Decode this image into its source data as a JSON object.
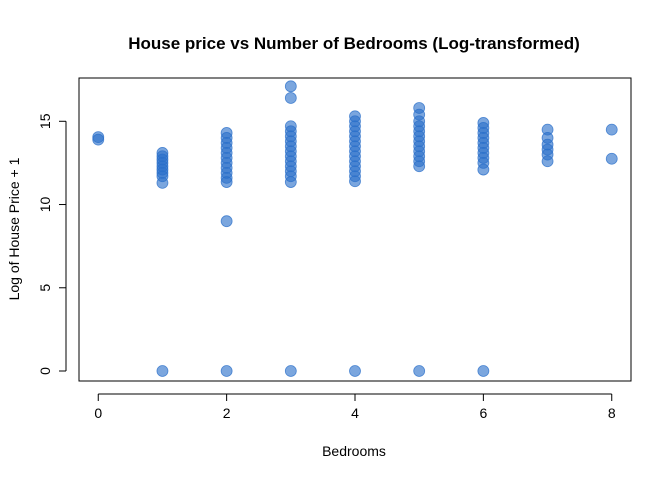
{
  "chart_data": {
    "type": "scatter",
    "title": "House price vs Number of Bedrooms (Log-transformed)",
    "xlabel": "Bedrooms",
    "ylabel": "Log of House Price + 1",
    "xlim": [
      -0.3,
      8.3
    ],
    "ylim": [
      -0.6,
      17.6
    ],
    "x_ticks": [
      0,
      2,
      4,
      6,
      8
    ],
    "y_ticks": [
      0,
      5,
      10,
      15
    ],
    "grid": false,
    "legend": "none",
    "point_color": "#2a6fc9",
    "points": [
      {
        "x": 0,
        "y": 14.05
      },
      {
        "x": 0,
        "y": 13.9
      },
      {
        "x": 1,
        "y": 13.1
      },
      {
        "x": 1,
        "y": 12.9
      },
      {
        "x": 1,
        "y": 12.7
      },
      {
        "x": 1,
        "y": 12.5
      },
      {
        "x": 1,
        "y": 12.3
      },
      {
        "x": 1,
        "y": 12.1
      },
      {
        "x": 1,
        "y": 11.9
      },
      {
        "x": 1,
        "y": 11.7
      },
      {
        "x": 1,
        "y": 11.3
      },
      {
        "x": 1,
        "y": 0
      },
      {
        "x": 2,
        "y": 14.3
      },
      {
        "x": 2,
        "y": 14.0
      },
      {
        "x": 2,
        "y": 13.7
      },
      {
        "x": 2,
        "y": 13.4
      },
      {
        "x": 2,
        "y": 13.1
      },
      {
        "x": 2,
        "y": 12.8
      },
      {
        "x": 2,
        "y": 12.5
      },
      {
        "x": 2,
        "y": 12.2
      },
      {
        "x": 2,
        "y": 11.9
      },
      {
        "x": 2,
        "y": 11.6
      },
      {
        "x": 2,
        "y": 11.35
      },
      {
        "x": 2,
        "y": 9.0
      },
      {
        "x": 2,
        "y": 0
      },
      {
        "x": 3,
        "y": 17.1
      },
      {
        "x": 3,
        "y": 16.4
      },
      {
        "x": 3,
        "y": 14.7
      },
      {
        "x": 3,
        "y": 14.4
      },
      {
        "x": 3,
        "y": 14.1
      },
      {
        "x": 3,
        "y": 13.8
      },
      {
        "x": 3,
        "y": 13.5
      },
      {
        "x": 3,
        "y": 13.2
      },
      {
        "x": 3,
        "y": 12.9
      },
      {
        "x": 3,
        "y": 12.6
      },
      {
        "x": 3,
        "y": 12.3
      },
      {
        "x": 3,
        "y": 12.0
      },
      {
        "x": 3,
        "y": 11.7
      },
      {
        "x": 3,
        "y": 11.35
      },
      {
        "x": 3,
        "y": 0
      },
      {
        "x": 4,
        "y": 15.3
      },
      {
        "x": 4,
        "y": 15.0
      },
      {
        "x": 4,
        "y": 14.7
      },
      {
        "x": 4,
        "y": 14.4
      },
      {
        "x": 4,
        "y": 14.1
      },
      {
        "x": 4,
        "y": 13.8
      },
      {
        "x": 4,
        "y": 13.5
      },
      {
        "x": 4,
        "y": 13.2
      },
      {
        "x": 4,
        "y": 12.9
      },
      {
        "x": 4,
        "y": 12.6
      },
      {
        "x": 4,
        "y": 12.3
      },
      {
        "x": 4,
        "y": 12.0
      },
      {
        "x": 4,
        "y": 11.7
      },
      {
        "x": 4,
        "y": 11.4
      },
      {
        "x": 4,
        "y": 0
      },
      {
        "x": 5,
        "y": 15.8
      },
      {
        "x": 5,
        "y": 15.4
      },
      {
        "x": 5,
        "y": 15.0
      },
      {
        "x": 5,
        "y": 14.7
      },
      {
        "x": 5,
        "y": 14.4
      },
      {
        "x": 5,
        "y": 14.1
      },
      {
        "x": 5,
        "y": 13.8
      },
      {
        "x": 5,
        "y": 13.5
      },
      {
        "x": 5,
        "y": 13.2
      },
      {
        "x": 5,
        "y": 12.9
      },
      {
        "x": 5,
        "y": 12.6
      },
      {
        "x": 5,
        "y": 12.3
      },
      {
        "x": 5,
        "y": 0
      },
      {
        "x": 6,
        "y": 14.9
      },
      {
        "x": 6,
        "y": 14.6
      },
      {
        "x": 6,
        "y": 14.3
      },
      {
        "x": 6,
        "y": 14.0
      },
      {
        "x": 6,
        "y": 13.7
      },
      {
        "x": 6,
        "y": 13.4
      },
      {
        "x": 6,
        "y": 13.1
      },
      {
        "x": 6,
        "y": 12.8
      },
      {
        "x": 6,
        "y": 12.5
      },
      {
        "x": 6,
        "y": 12.1
      },
      {
        "x": 6,
        "y": 0
      },
      {
        "x": 7,
        "y": 14.5
      },
      {
        "x": 7,
        "y": 14.0
      },
      {
        "x": 7,
        "y": 13.6
      },
      {
        "x": 7,
        "y": 13.3
      },
      {
        "x": 7,
        "y": 13.0
      },
      {
        "x": 7,
        "y": 12.6
      },
      {
        "x": 8,
        "y": 14.5
      },
      {
        "x": 8,
        "y": 12.75
      }
    ]
  }
}
